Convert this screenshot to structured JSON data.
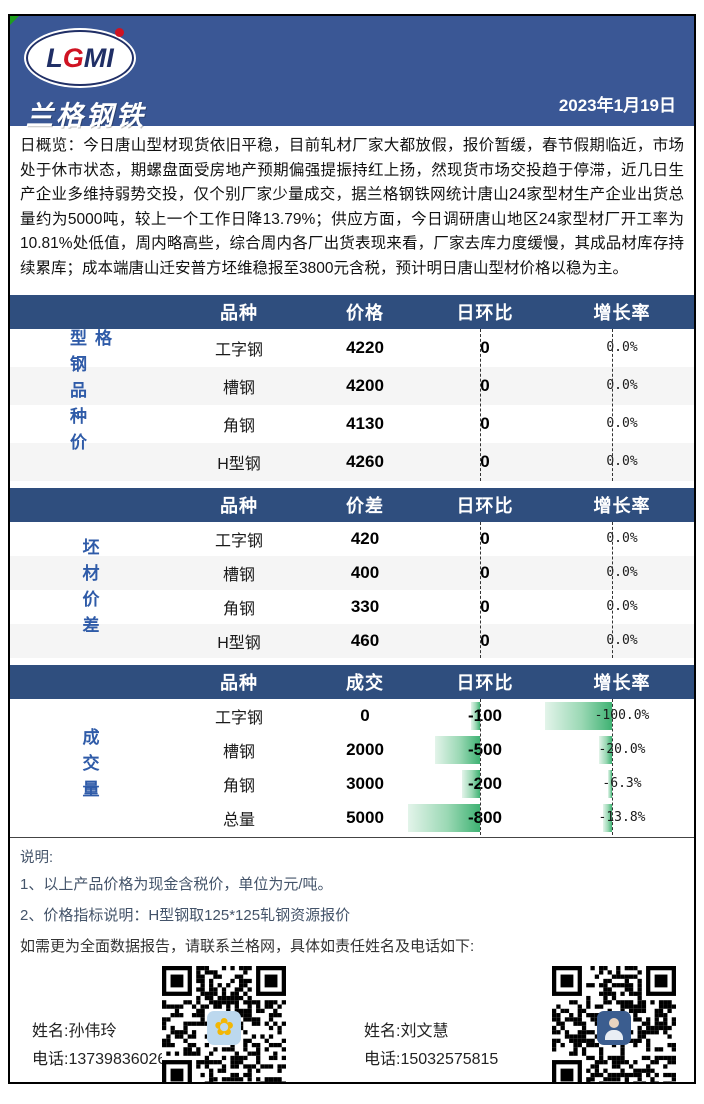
{
  "header": {
    "logo_letters": [
      "L",
      "G",
      "M",
      "I"
    ],
    "logo_name": "兰格钢铁",
    "date": "2023年1月19日"
  },
  "overview": "日概览：今日唐山型材现货依旧平稳，目前轧材厂家大都放假，报价暂缓，春节假期临近，市场处于休市状态，期螺盘面受房地产预期偏强提振持红上扬，然现货市场交投趋于停滞，近几日生产企业多维持弱势交投，仅个别厂家少量成交，据兰格钢铁网统计唐山24家型材生产企业出货总量约为5000吨，较上一个工作日降13.79%；供应方面，今日调研唐山地区24家型材厂开工率为10.81%处低值，周内略高些，综合周内各厂出货表现来看，厂家去库力度缓慢，其成品材库存持续累库；成本端唐山迁安普方坯维稳报至3800元含税，预计明日唐山型材价格以稳为主。",
  "tables": [
    {
      "label": "型钢品种价格",
      "columns": [
        "品种",
        "价格",
        "日环比",
        "增长率"
      ],
      "rows": [
        {
          "variety": "工字钢",
          "value": "4220",
          "change": 0,
          "change_text": "0",
          "rate": 0.0,
          "rate_text": "0.0%"
        },
        {
          "variety": "槽钢",
          "value": "4200",
          "change": 0,
          "change_text": "0",
          "rate": 0.0,
          "rate_text": "0.0%"
        },
        {
          "variety": "角钢",
          "value": "4130",
          "change": 0,
          "change_text": "0",
          "rate": 0.0,
          "rate_text": "0.0%"
        },
        {
          "variety": "H型钢",
          "value": "4260",
          "change": 0,
          "change_text": "0",
          "rate": 0.0,
          "rate_text": "0.0%"
        }
      ]
    },
    {
      "label": "坯材价差",
      "columns": [
        "品种",
        "价差",
        "日环比",
        "增长率"
      ],
      "rows": [
        {
          "variety": "工字钢",
          "value": "420",
          "change": 0,
          "change_text": "0",
          "rate": 0.0,
          "rate_text": "0.0%"
        },
        {
          "variety": "槽钢",
          "value": "400",
          "change": 0,
          "change_text": "0",
          "rate": 0.0,
          "rate_text": "0.0%"
        },
        {
          "variety": "角钢",
          "value": "330",
          "change": 0,
          "change_text": "0",
          "rate": 0.0,
          "rate_text": "0.0%"
        },
        {
          "variety": "H型钢",
          "value": "460",
          "change": 0,
          "change_text": "0",
          "rate": 0.0,
          "rate_text": "0.0%"
        }
      ]
    },
    {
      "label": "成交量",
      "columns": [
        "品种",
        "成交",
        "日环比",
        "增长率"
      ],
      "rows": [
        {
          "variety": "工字钢",
          "value": "0",
          "change": -100,
          "change_text": "-100",
          "rate": -100.0,
          "rate_text": "-100.0%"
        },
        {
          "variety": "槽钢",
          "value": "2000",
          "change": -500,
          "change_text": "-500",
          "rate": -20.0,
          "rate_text": "-20.0%"
        },
        {
          "variety": "角钢",
          "value": "3000",
          "change": -200,
          "change_text": "-200",
          "rate": -6.3,
          "rate_text": "-6.3%"
        },
        {
          "variety": "总量",
          "value": "5000",
          "change": -800,
          "change_text": "-800",
          "rate": -13.8,
          "rate_text": "-13.8%"
        }
      ]
    }
  ],
  "notes": {
    "title": "说明:",
    "items": [
      "1、以上产品价格为现金含税价，单位为元/吨。",
      "2、价格指标说明：H型钢取125*125轧钢资源报价"
    ],
    "contact_line": "如需更为全面数据报告，请联系兰格网，具体如责任姓名及电话如下:"
  },
  "contacts": [
    {
      "name_label": "姓名:孙伟玲",
      "phone_label": "电话:13739836026"
    },
    {
      "name_label": "姓名:刘文慧",
      "phone_label": "电话:15032575815"
    }
  ],
  "colors": {
    "header_blue": "#3A5795",
    "table_header_blue": "#2F4E7E",
    "section_label_blue": "#2F5BA8",
    "databar_green": "#3fb273",
    "notes_text": "#44546A"
  }
}
